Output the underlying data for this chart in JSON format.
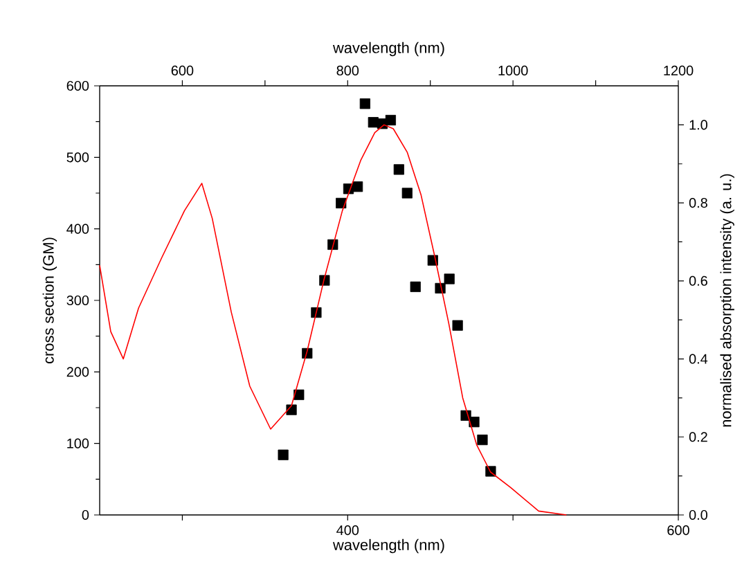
{
  "chart_data": {
    "type": "scatter",
    "xlabel": "wavelength (nm)",
    "x2label": "wavelength (nm)",
    "ylabel": "cross section (GM)",
    "y2label": "normalised absorption intensity (a. u.)",
    "xlim": [
      250,
      600
    ],
    "xticks": [
      {
        "value": 300,
        "label": null
      },
      400,
      {
        "value": 500,
        "label": null
      },
      600
    ],
    "x2lim": [
      500,
      1200
    ],
    "x2ticks": [
      600,
      {
        "value": 700,
        "label": null
      },
      800,
      {
        "value": 900,
        "label": null
      },
      1000,
      {
        "value": 1100,
        "label": null
      },
      1200
    ],
    "ylim": [
      0,
      600
    ],
    "yticks": [
      0,
      100,
      200,
      300,
      400,
      500,
      600
    ],
    "y2lim": [
      0,
      1.1
    ],
    "y2ticks": [
      {
        "value": 0,
        "label": "0.0"
      },
      0.2,
      0.4,
      0.6,
      0.8,
      {
        "value": 1,
        "label": "1.0"
      }
    ],
    "series": [
      {
        "type": "line",
        "axis": "y2",
        "color": "#ff0000",
        "marker": "none",
        "line_style": "solid",
        "x": [
          250,
          256.7,
          264.3,
          273.5,
          287.6,
          301.3,
          311.8,
          318.1,
          329.6,
          340.8,
          353.4,
          366,
          375.5,
          385.5,
          396.8,
          408,
          416.4,
          422,
          427.6,
          436,
          444.4,
          452.8,
          461.2,
          469.6,
          478,
          486.4,
          498.7,
          515.5,
          532.3
        ],
        "values": [
          0.64,
          0.47,
          0.4,
          0.53,
          0.66,
          0.78,
          0.85,
          0.76,
          0.52,
          0.33,
          0.22,
          0.28,
          0.42,
          0.6,
          0.78,
          0.91,
          0.98,
          1.0,
          0.99,
          0.93,
          0.82,
          0.66,
          0.49,
          0.3,
          0.18,
          0.11,
          0.07,
          0.01,
          0
        ]
      },
      {
        "axis": "x2",
        "color": "#000000",
        "marker": "square",
        "x": [
          722,
          732,
          741,
          751,
          762,
          772,
          782,
          792,
          801,
          812,
          821,
          831,
          842,
          852,
          862,
          872,
          882,
          903,
          912,
          923,
          933,
          943,
          953,
          963,
          973
        ],
        "values": [
          84,
          147,
          168,
          226,
          283,
          328,
          378,
          436,
          456,
          459,
          575,
          549,
          547,
          552,
          483,
          450,
          319,
          356,
          317,
          330,
          265,
          139,
          130,
          105,
          61
        ]
      }
    ]
  }
}
